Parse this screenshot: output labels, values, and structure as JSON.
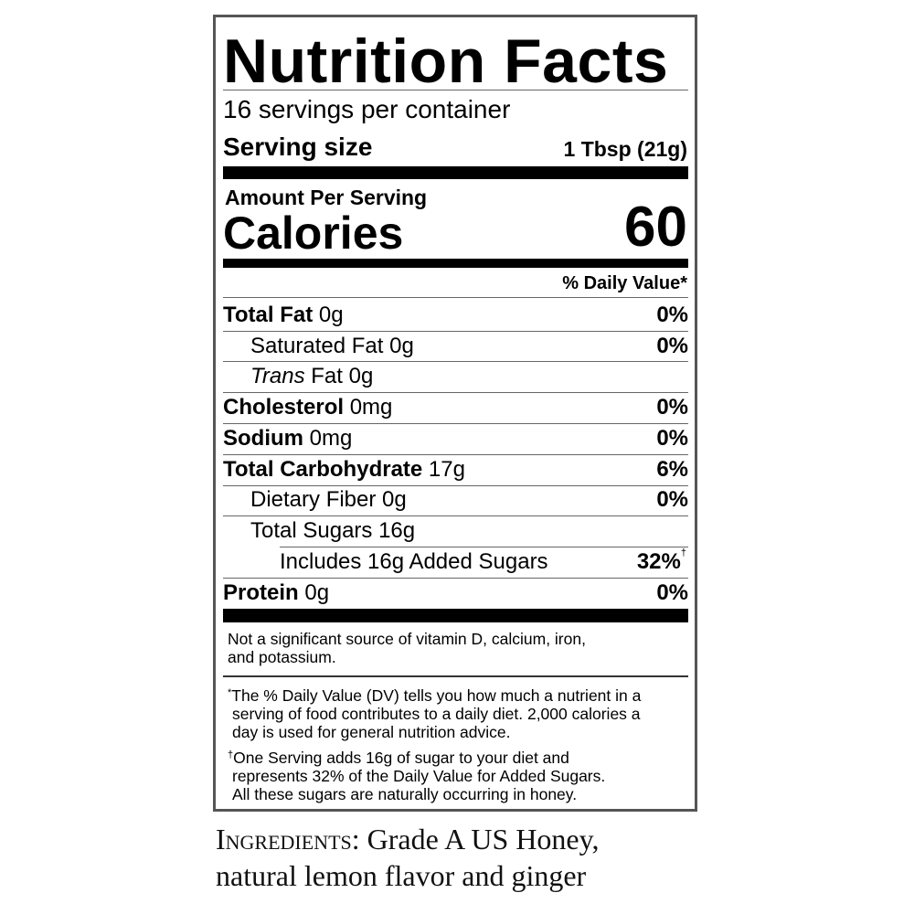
{
  "title": "Nutrition Facts",
  "servings_per_container": "16 servings per container",
  "serving_size": {
    "label": "Serving size",
    "value": "1 Tbsp (21g)"
  },
  "amount_per_serving": "Amount Per Serving",
  "calories": {
    "label": "Calories",
    "value": "60"
  },
  "daily_value_header": "% Daily Value*",
  "nutrients": [
    {
      "name": "Total Fat",
      "amount": "0g",
      "dv": "0%"
    },
    {
      "name": "Saturated Fat",
      "amount": "0g",
      "dv": "0%"
    },
    {
      "name": "Trans",
      "name_suffix": "Fat",
      "amount": "0g",
      "dv": ""
    },
    {
      "name": "Cholesterol",
      "amount": "0mg",
      "dv": "0%"
    },
    {
      "name": "Sodium",
      "amount": "0mg",
      "dv": "0%"
    },
    {
      "name": "Total Carbohydrate",
      "amount": "17g",
      "dv": "6%"
    },
    {
      "name": "Dietary Fiber",
      "amount": "0g",
      "dv": "0%"
    },
    {
      "name": "Total Sugars",
      "amount": "16g",
      "dv": ""
    },
    {
      "name": "Includes 16g Added Sugars",
      "amount": "",
      "dv": "32%",
      "dv_mark": "†"
    },
    {
      "name": "Protein",
      "amount": "0g",
      "dv": "0%"
    }
  ],
  "micronutrient_note": [
    "Not a significant source of vitamin D, calcium, iron,",
    "and potassium."
  ],
  "footnote_dv": {
    "mark": "*",
    "lines": [
      "The % Daily Value (DV) tells you how much a nutrient in a",
      "serving of food contributes to a daily diet. 2,000 calories a",
      "day is used for general nutrition advice."
    ]
  },
  "footnote_sugar": {
    "mark": "†",
    "lines": [
      "One Serving adds 16g of sugar to your diet and",
      "represents 32% of the Daily Value for Added Sugars.",
      "All these sugars are naturally occurring in honey."
    ]
  },
  "ingredients": {
    "label": "Ingredients:",
    "line1": "Grade A US Honey,",
    "line2": "natural lemon flavor and ginger"
  }
}
